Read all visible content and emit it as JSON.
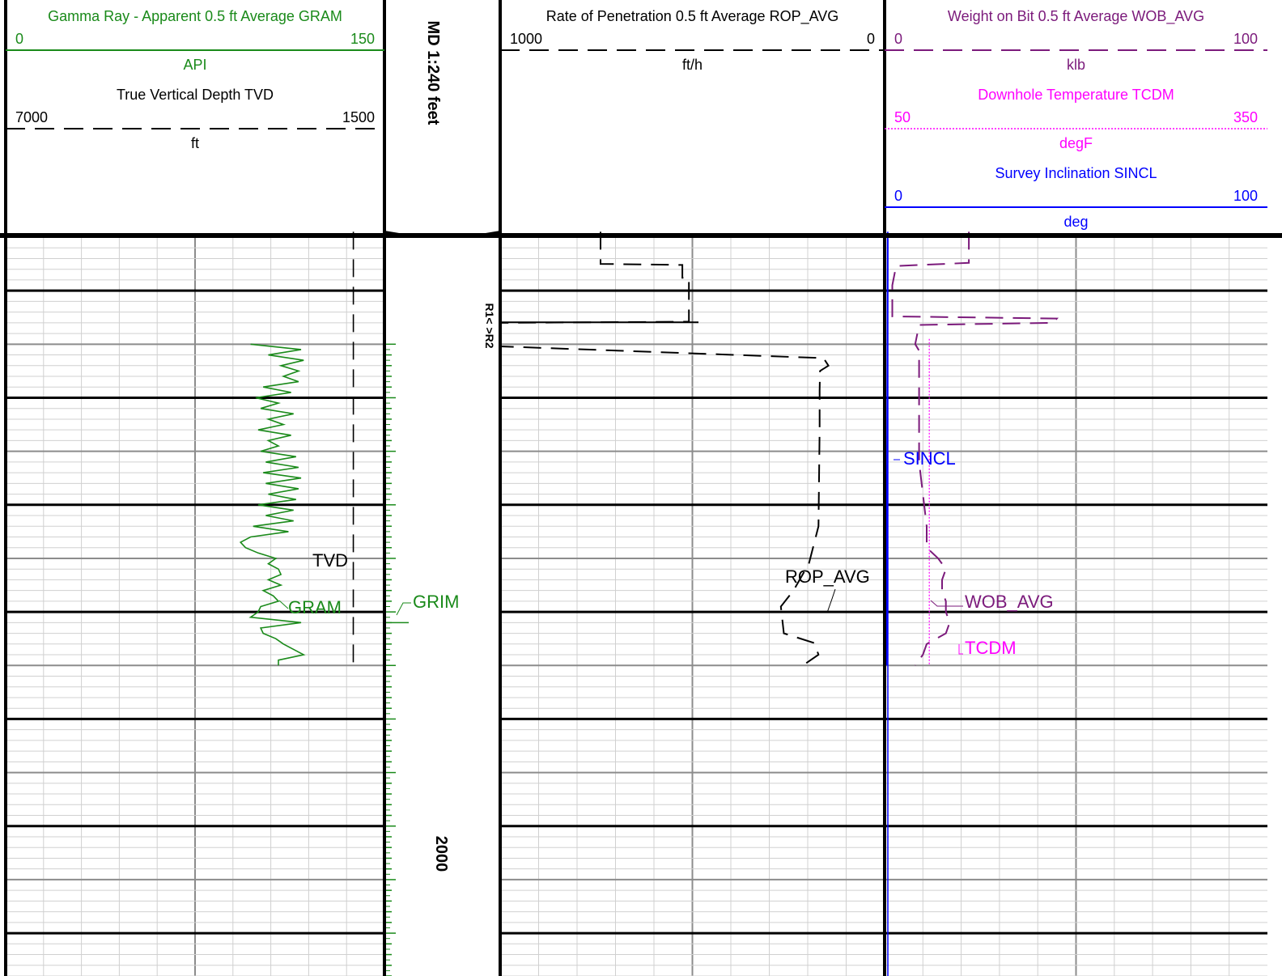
{
  "colors": {
    "gamma": "#1a8a1a",
    "tvd": "#000000",
    "rop": "#000000",
    "wob": "#7b1a7b",
    "temp": "#ff00ff",
    "incl": "#0000ff",
    "grid_minor": "#d0d0d0",
    "grid_major": "#8c8c8c",
    "border": "#000000"
  },
  "depth_track": {
    "scale_label": "MD 1:240 feet",
    "depth_label": "2000",
    "r_label": "R1<  >R2"
  },
  "headers": {
    "track1": [
      {
        "key": "gram",
        "title": "Gamma Ray - Apparent 0.5 ft Average GRAM",
        "left": "0",
        "right": "150",
        "unit": "API",
        "color_key": "gamma",
        "line": "solid"
      },
      {
        "key": "tvd",
        "title": "True Vertical Depth TVD",
        "left": "7000",
        "right": "1500",
        "unit": "ft",
        "color_key": "tvd",
        "line": "dash"
      }
    ],
    "track3": [
      {
        "key": "rop",
        "title": "Rate of Penetration 0.5 ft Average ROP_AVG",
        "left": "1000",
        "right": "0",
        "unit": "ft/h",
        "color_key": "rop",
        "line": "dash"
      }
    ],
    "track4": [
      {
        "key": "wob",
        "title": "Weight on Bit 0.5 ft Average WOB_AVG",
        "left": "0",
        "right": "100",
        "unit": "klb",
        "color_key": "wob",
        "line": "dash"
      },
      {
        "key": "tcdm",
        "title": "Downhole Temperature TCDM",
        "left": "50",
        "right": "350",
        "unit": "degF",
        "color_key": "temp",
        "line": "dot"
      },
      {
        "key": "sincl",
        "title": "Survey Inclination SINCL",
        "left": "0",
        "right": "100",
        "unit": "deg",
        "color_key": "incl",
        "line": "solid"
      }
    ]
  },
  "curve_labels": {
    "tvd": "TVD",
    "gram": "GRAM",
    "grim": "GRIM",
    "rop": "ROP_AVG",
    "sincl": "SINCL",
    "wob": "WOB_AVG",
    "tcdm": "TCDM"
  },
  "chart_data": {
    "type": "line",
    "title": "",
    "depth_unit": "ft MD",
    "depth_window": [
      1945,
      2014
    ],
    "series": [
      {
        "name": "GRAM",
        "unit": "API",
        "scale": [
          0,
          150
        ],
        "points": [
          [
            1955.0,
            97
          ],
          [
            1955.5,
            117
          ],
          [
            1956.0,
            104
          ],
          [
            1956.5,
            118
          ],
          [
            1957.0,
            109
          ],
          [
            1957.5,
            116
          ],
          [
            1958.0,
            110
          ],
          [
            1958.5,
            116
          ],
          [
            1959.0,
            102
          ],
          [
            1959.5,
            113
          ],
          [
            1960.0,
            99
          ],
          [
            1960.5,
            108
          ],
          [
            1961.0,
            101
          ],
          [
            1961.5,
            114
          ],
          [
            1962.0,
            104
          ],
          [
            1962.5,
            110
          ],
          [
            1963.0,
            100
          ],
          [
            1963.5,
            113
          ],
          [
            1964.0,
            104
          ],
          [
            1964.5,
            108
          ],
          [
            1965.0,
            101
          ],
          [
            1965.5,
            115
          ],
          [
            1966.0,
            103
          ],
          [
            1966.5,
            116
          ],
          [
            1967.0,
            102
          ],
          [
            1967.5,
            117
          ],
          [
            1968.0,
            103
          ],
          [
            1968.5,
            116
          ],
          [
            1969.0,
            104
          ],
          [
            1969.5,
            115
          ],
          [
            1970.0,
            100
          ],
          [
            1970.5,
            114
          ],
          [
            1971.0,
            103
          ],
          [
            1971.5,
            114
          ],
          [
            1972.0,
            98
          ],
          [
            1972.5,
            112
          ],
          [
            1973.0,
            97
          ],
          [
            1973.5,
            93
          ],
          [
            1974.0,
            95
          ],
          [
            1974.5,
            100
          ],
          [
            1975.0,
            107
          ],
          [
            1975.5,
            104
          ],
          [
            1976.0,
            108
          ],
          [
            1976.5,
            109
          ],
          [
            1977.0,
            104
          ],
          [
            1977.5,
            109
          ],
          [
            1978.0,
            102
          ],
          [
            1978.5,
            106
          ],
          [
            1979.0,
            108
          ],
          [
            1979.5,
            101
          ],
          [
            1980.0,
            100
          ],
          [
            1980.5,
            97
          ],
          [
            1981.0,
            117
          ],
          [
            1981.5,
            101
          ],
          [
            1982.0,
            102
          ],
          [
            1982.5,
            107
          ],
          [
            1983.0,
            110
          ],
          [
            1983.5,
            114
          ],
          [
            1984.0,
            118
          ],
          [
            1984.5,
            108
          ],
          [
            1985.0,
            108
          ]
        ]
      },
      {
        "name": "TVD",
        "unit": "ft",
        "scale": [
          7000,
          1500
        ],
        "points": [
          [
            1944.5,
            1951.0
          ],
          [
            1965.0,
            1951.5
          ],
          [
            1985.0,
            1953.0
          ]
        ]
      },
      {
        "name": "ROP_AVG",
        "unit": "ft/h",
        "scale": [
          1000,
          0
        ],
        "points": [
          [
            1944.5,
            739
          ],
          [
            1947.5,
            739
          ],
          [
            1947.6,
            526
          ],
          [
            1948.8,
            526
          ],
          [
            1948.8,
            509
          ],
          [
            1951.2,
            509
          ],
          [
            1951.8,
            509
          ],
          [
            1952.9,
            509
          ],
          [
            1953.0,
            1000
          ],
          [
            1955.0,
            1000
          ],
          [
            1955.2,
            1000
          ],
          [
            1956.3,
            159
          ],
          [
            1957.0,
            146
          ],
          [
            1957.5,
            168
          ],
          [
            1959.3,
            169
          ],
          [
            1963.0,
            169
          ],
          [
            1972.0,
            172
          ],
          [
            1975.5,
            197
          ],
          [
            1978.0,
            237
          ],
          [
            1979.5,
            270
          ],
          [
            1982.0,
            262
          ],
          [
            1982.9,
            183
          ],
          [
            1984.0,
            172
          ],
          [
            1985.0,
            213
          ]
        ]
      },
      {
        "name": "WOB_AVG",
        "unit": "klb",
        "scale": [
          0,
          100
        ],
        "points": [
          [
            1944.5,
            22
          ],
          [
            1947.4,
            22
          ],
          [
            1947.7,
            3
          ],
          [
            1949.5,
            2
          ],
          [
            1952.4,
            2
          ],
          [
            1952.6,
            45
          ],
          [
            1953.0,
            44
          ],
          [
            1953.2,
            9
          ],
          [
            1955.0,
            8
          ],
          [
            1955.6,
            9
          ],
          [
            1957.0,
            9
          ],
          [
            1960.0,
            9
          ],
          [
            1966.0,
            9
          ],
          [
            1972.0,
            11
          ],
          [
            1974.0,
            11
          ],
          [
            1975.0,
            14
          ],
          [
            1976.0,
            16
          ],
          [
            1977.0,
            15
          ],
          [
            1978.0,
            15
          ],
          [
            1979.0,
            16
          ],
          [
            1980.0,
            16
          ],
          [
            1981.0,
            17
          ],
          [
            1982.0,
            16
          ],
          [
            1983.0,
            11
          ],
          [
            1984.0,
            10
          ],
          [
            1985.0,
            8
          ]
        ]
      },
      {
        "name": "TCDM",
        "unit": "degF",
        "scale": [
          50,
          350
        ],
        "points": [
          [
            1954.5,
            85
          ],
          [
            1985.0,
            85
          ]
        ]
      },
      {
        "name": "SINCL",
        "unit": "deg",
        "scale": [
          0,
          100
        ],
        "points": [
          [
            1944.5,
            0.8
          ],
          [
            1985.0,
            0.5
          ]
        ]
      }
    ]
  }
}
